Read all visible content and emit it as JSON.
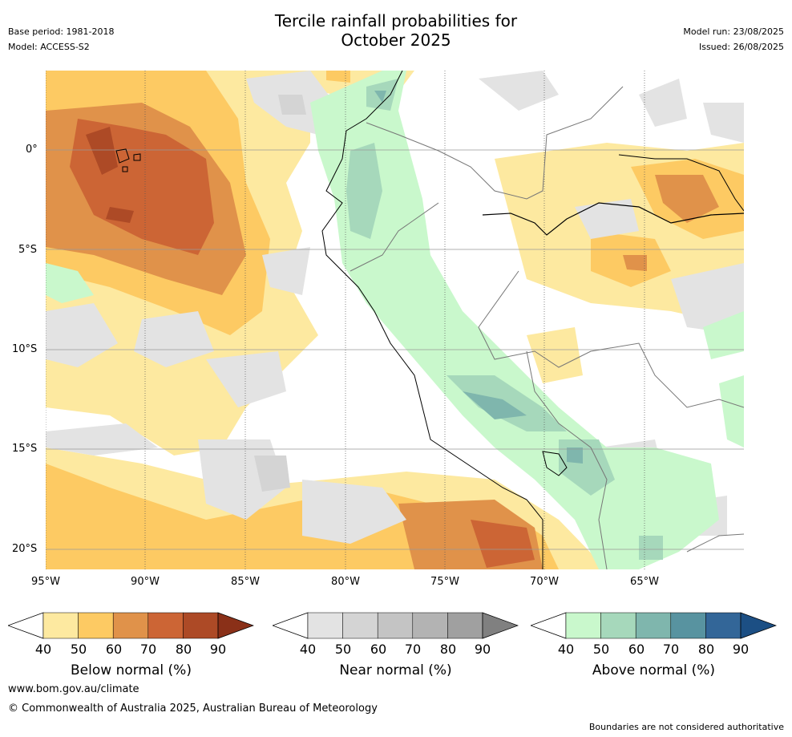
{
  "title_line1": "Tercile rainfall probabilities for",
  "title_line2": "October 2025",
  "base_period": "Base period: 1981-2018",
  "model": "Model: ACCESS-S2",
  "model_run": "Model run: 23/08/2025",
  "issued": "Issued: 26/08/2025",
  "map": {
    "lat_labels": [
      "0°",
      "5°S",
      "10°S",
      "15°S",
      "20°S"
    ],
    "lon_labels": [
      "95°W",
      "90°W",
      "85°W",
      "80°W",
      "75°W",
      "70°W",
      "65°W"
    ]
  },
  "legends": [
    {
      "label": "Below normal (%)",
      "ticks": [
        "40",
        "50",
        "60",
        "70",
        "80",
        "90"
      ],
      "colors": [
        "#fde9a0",
        "#fdca63",
        "#e0924a",
        "#cc6535",
        "#ad4a26",
        "#8a3018"
      ]
    },
    {
      "label": "Near normal (%)",
      "ticks": [
        "40",
        "50",
        "60",
        "70",
        "80",
        "90"
      ],
      "colors": [
        "#e3e3e3",
        "#d4d4d4",
        "#c4c4c4",
        "#b3b3b3",
        "#a0a0a0",
        "#808080"
      ]
    },
    {
      "label": "Above normal (%)",
      "ticks": [
        "40",
        "50",
        "60",
        "70",
        "80",
        "90"
      ],
      "colors": [
        "#c9f8cc",
        "#a6d8bb",
        "#7fb6ad",
        "#5893a0",
        "#336698",
        "#1c4f84"
      ]
    }
  ],
  "footer": {
    "url": "www.bom.gov.au/climate",
    "copyright": "© Commonwealth of Australia 2025, Australian Bureau of Meteorology",
    "disclaimer": "Boundaries are not considered authoritative"
  }
}
